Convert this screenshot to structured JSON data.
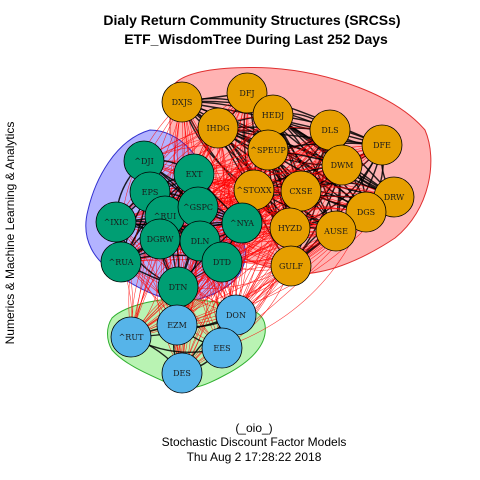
{
  "title": {
    "line1": "Dialy Return Community Structures (SRCSs)",
    "line2": "ETF_WisdomTree During Last 252 Days"
  },
  "side_label": "Numerics & Machine Learning & Analytics",
  "caption": {
    "line1": "(_oio_)",
    "line2": "Stochastic Discount Factor Models",
    "line3": "Thu Aug  2 17:28:22 2018"
  },
  "colors": {
    "orange_node": "#E69F00",
    "green_node": "#009E73",
    "blue_node": "#56B4E9",
    "red_hull": "#FF9999",
    "red_hull_border": "#E03030",
    "blue_hull": "#9999FF",
    "blue_hull_border": "#3030D0",
    "green_hull": "#A8F0A0",
    "green_hull_border": "#30B030",
    "edge_between": "#FF0000",
    "edge_within": "#000000"
  },
  "communities": [
    {
      "id": "orange",
      "color": "#E69F00"
    },
    {
      "id": "green",
      "color": "#009E73"
    },
    {
      "id": "blue",
      "color": "#56B4E9"
    }
  ],
  "nodes": [
    {
      "label": "DXJS",
      "community": "orange"
    },
    {
      "label": "DFJ",
      "community": "orange"
    },
    {
      "label": "IHDG",
      "community": "orange"
    },
    {
      "label": "HEDJ",
      "community": "orange"
    },
    {
      "label": "DLS",
      "community": "orange"
    },
    {
      "label": "DFE",
      "community": "orange"
    },
    {
      "label": "^SPEUP",
      "community": "orange"
    },
    {
      "label": "DWM",
      "community": "orange"
    },
    {
      "label": "^STOXX",
      "community": "orange"
    },
    {
      "label": "CXSE",
      "community": "orange"
    },
    {
      "label": "DRW",
      "community": "orange"
    },
    {
      "label": "DGS",
      "community": "orange"
    },
    {
      "label": "HYZD",
      "community": "orange"
    },
    {
      "label": "AUSE",
      "community": "orange"
    },
    {
      "label": "GULF",
      "community": "orange"
    },
    {
      "label": "^DJI",
      "community": "green"
    },
    {
      "label": "EXT",
      "community": "green"
    },
    {
      "label": "EPS",
      "community": "green"
    },
    {
      "label": "^RUI",
      "community": "green"
    },
    {
      "label": "^GSPC",
      "community": "green"
    },
    {
      "label": "^NYA",
      "community": "green"
    },
    {
      "label": "^IXIC",
      "community": "green"
    },
    {
      "label": "DGRW",
      "community": "green"
    },
    {
      "label": "DLN",
      "community": "green"
    },
    {
      "label": "^RUA",
      "community": "green"
    },
    {
      "label": "DTD",
      "community": "green"
    },
    {
      "label": "DTN",
      "community": "green"
    },
    {
      "label": "DON",
      "community": "blue"
    },
    {
      "label": "EZM",
      "community": "blue"
    },
    {
      "label": "^RUT",
      "community": "blue"
    },
    {
      "label": "EES",
      "community": "blue"
    },
    {
      "label": "DES",
      "community": "blue"
    }
  ]
}
